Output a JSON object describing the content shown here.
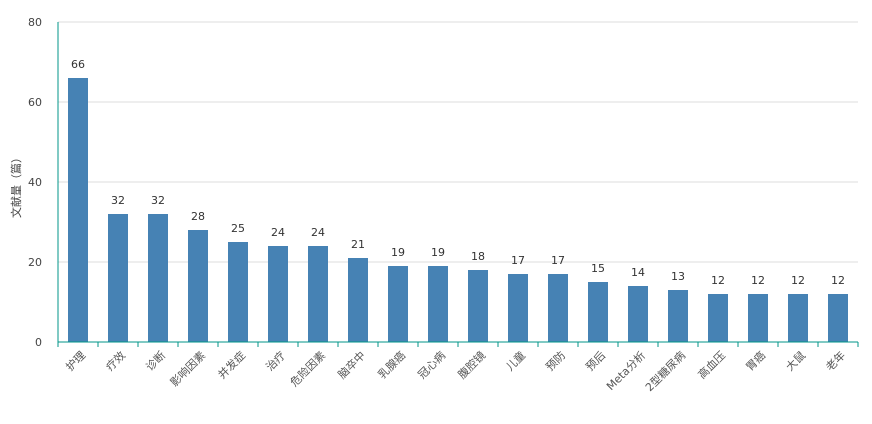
{
  "chart_data": {
    "type": "bar",
    "ylabel": "文献量（篇）",
    "ylim": [
      0,
      80
    ],
    "yticks": [
      0,
      20,
      40,
      60,
      80
    ],
    "grid": true,
    "categories": [
      "护理",
      "疗效",
      "诊断",
      "影响因素",
      "并发症",
      "治疗",
      "危险因素",
      "脑卒中",
      "乳腺癌",
      "冠心病",
      "腹腔镜",
      "儿童",
      "预防",
      "预后",
      "Meta分析",
      "2型糖尿病",
      "高血压",
      "胃癌",
      "大鼠",
      "老年"
    ],
    "values": [
      66,
      32,
      32,
      28,
      25,
      24,
      24,
      21,
      19,
      19,
      18,
      17,
      17,
      15,
      14,
      13,
      12,
      12,
      12,
      12
    ],
    "bar_color": "#4682b4",
    "axis_color": "#009688",
    "grid_color": "#dddddd"
  }
}
